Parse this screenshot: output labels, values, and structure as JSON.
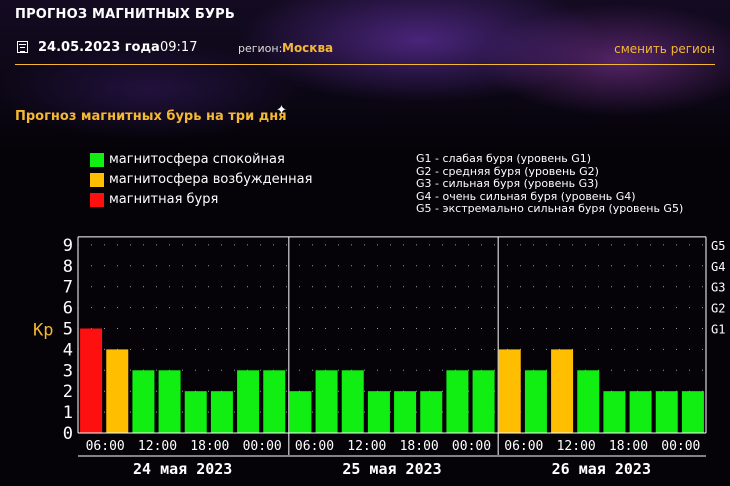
{
  "header": {
    "title": "ПРОГНОЗ МАГНИТНЫХ БУРЬ"
  },
  "info": {
    "date": "24.05.2023 года",
    "time": "09:17",
    "region_label": "регион:",
    "region_value": "Москва",
    "change_region": "сменить регион"
  },
  "subtitle": "Прогноз магнитных бурь на три дня",
  "legend": [
    {
      "label": "магнитосфера спокойная",
      "color": "#11ee11"
    },
    {
      "label": "магнитосфера возбужденная",
      "color": "#ffbf00"
    },
    {
      "label": "магнитная буря",
      "color": "#ff1010"
    }
  ],
  "g_levels": [
    "G1 - слабая буря (уровень G1)",
    "G2 - средняя буря (уровень G2)",
    "G3 - сильная буря (уровень G3)",
    "G4 - очень сильная буря (уровень G4)",
    "G5 - экстремально сильная буря (уровень G5)"
  ],
  "chart_data": {
    "type": "bar",
    "ylabel": "Kp",
    "ylim": [
      0,
      9
    ],
    "yticks": [
      "0",
      "1",
      "2",
      "3",
      "4",
      "5",
      "6",
      "7",
      "8",
      "9"
    ],
    "right_labels": [
      "G1",
      "G2",
      "G3",
      "G4",
      "G5"
    ],
    "time_labels": [
      "06:00",
      "12:00",
      "18:00",
      "00:00",
      "06:00",
      "12:00",
      "18:00",
      "00:00",
      "06:00",
      "12:00",
      "18:00",
      "00:00"
    ],
    "days": [
      "24 мая 2023",
      "25 мая 2023",
      "26 мая 2023"
    ],
    "values": [
      5,
      4,
      3,
      3,
      2,
      2,
      3,
      3,
      2,
      3,
      3,
      2,
      2,
      2,
      3,
      3,
      4,
      3,
      4,
      3,
      2,
      2,
      2,
      2
    ],
    "colors": {
      "quiet": "#11ee11",
      "active": "#ffbf00",
      "storm": "#ff1010"
    }
  }
}
